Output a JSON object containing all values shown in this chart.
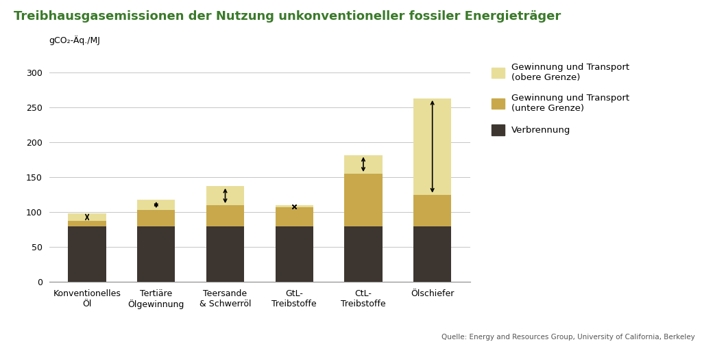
{
  "title": "Treibhausgasemissionen der Nutzung unkonventioneller fossiler Energieträger",
  "ylabel": "gCO₂-Äq./MJ",
  "source": "Quelle: Energy and Resources Group, University of California, Berkeley",
  "categories": [
    "Konventionelles\nÖl",
    "Tertiäre\nÖlgewinnung",
    "Teersande\n& Schwerröl",
    "GtL-\nTreibstoffe",
    "CtL-\nTreibstoffe",
    "Ölschiefer"
  ],
  "verbrennung": [
    80,
    80,
    80,
    80,
    80,
    80
  ],
  "lower_transport": [
    8,
    23,
    30,
    27,
    75,
    45
  ],
  "upper_transport": [
    10,
    15,
    27,
    3,
    27,
    138
  ],
  "color_verbrennung": "#3d3530",
  "color_lower": "#c8a84b",
  "color_upper": "#e8de9a",
  "title_color": "#3a7a2a",
  "ylim": [
    0,
    320
  ],
  "yticks": [
    0,
    50,
    100,
    150,
    200,
    250,
    300
  ],
  "bar_width": 0.55,
  "legend_labels": [
    "Gewinnung und Transport\n(obere Grenze)",
    "Gewinnung und Transport\n(untere Grenze)",
    "Verbrennung"
  ],
  "arrow_lower": [
    88,
    103,
    110,
    107,
    155,
    125
  ],
  "arrow_upper": [
    98,
    118,
    137,
    110,
    182,
    263
  ],
  "figsize": [
    10.24,
    5.03
  ],
  "dpi": 100
}
